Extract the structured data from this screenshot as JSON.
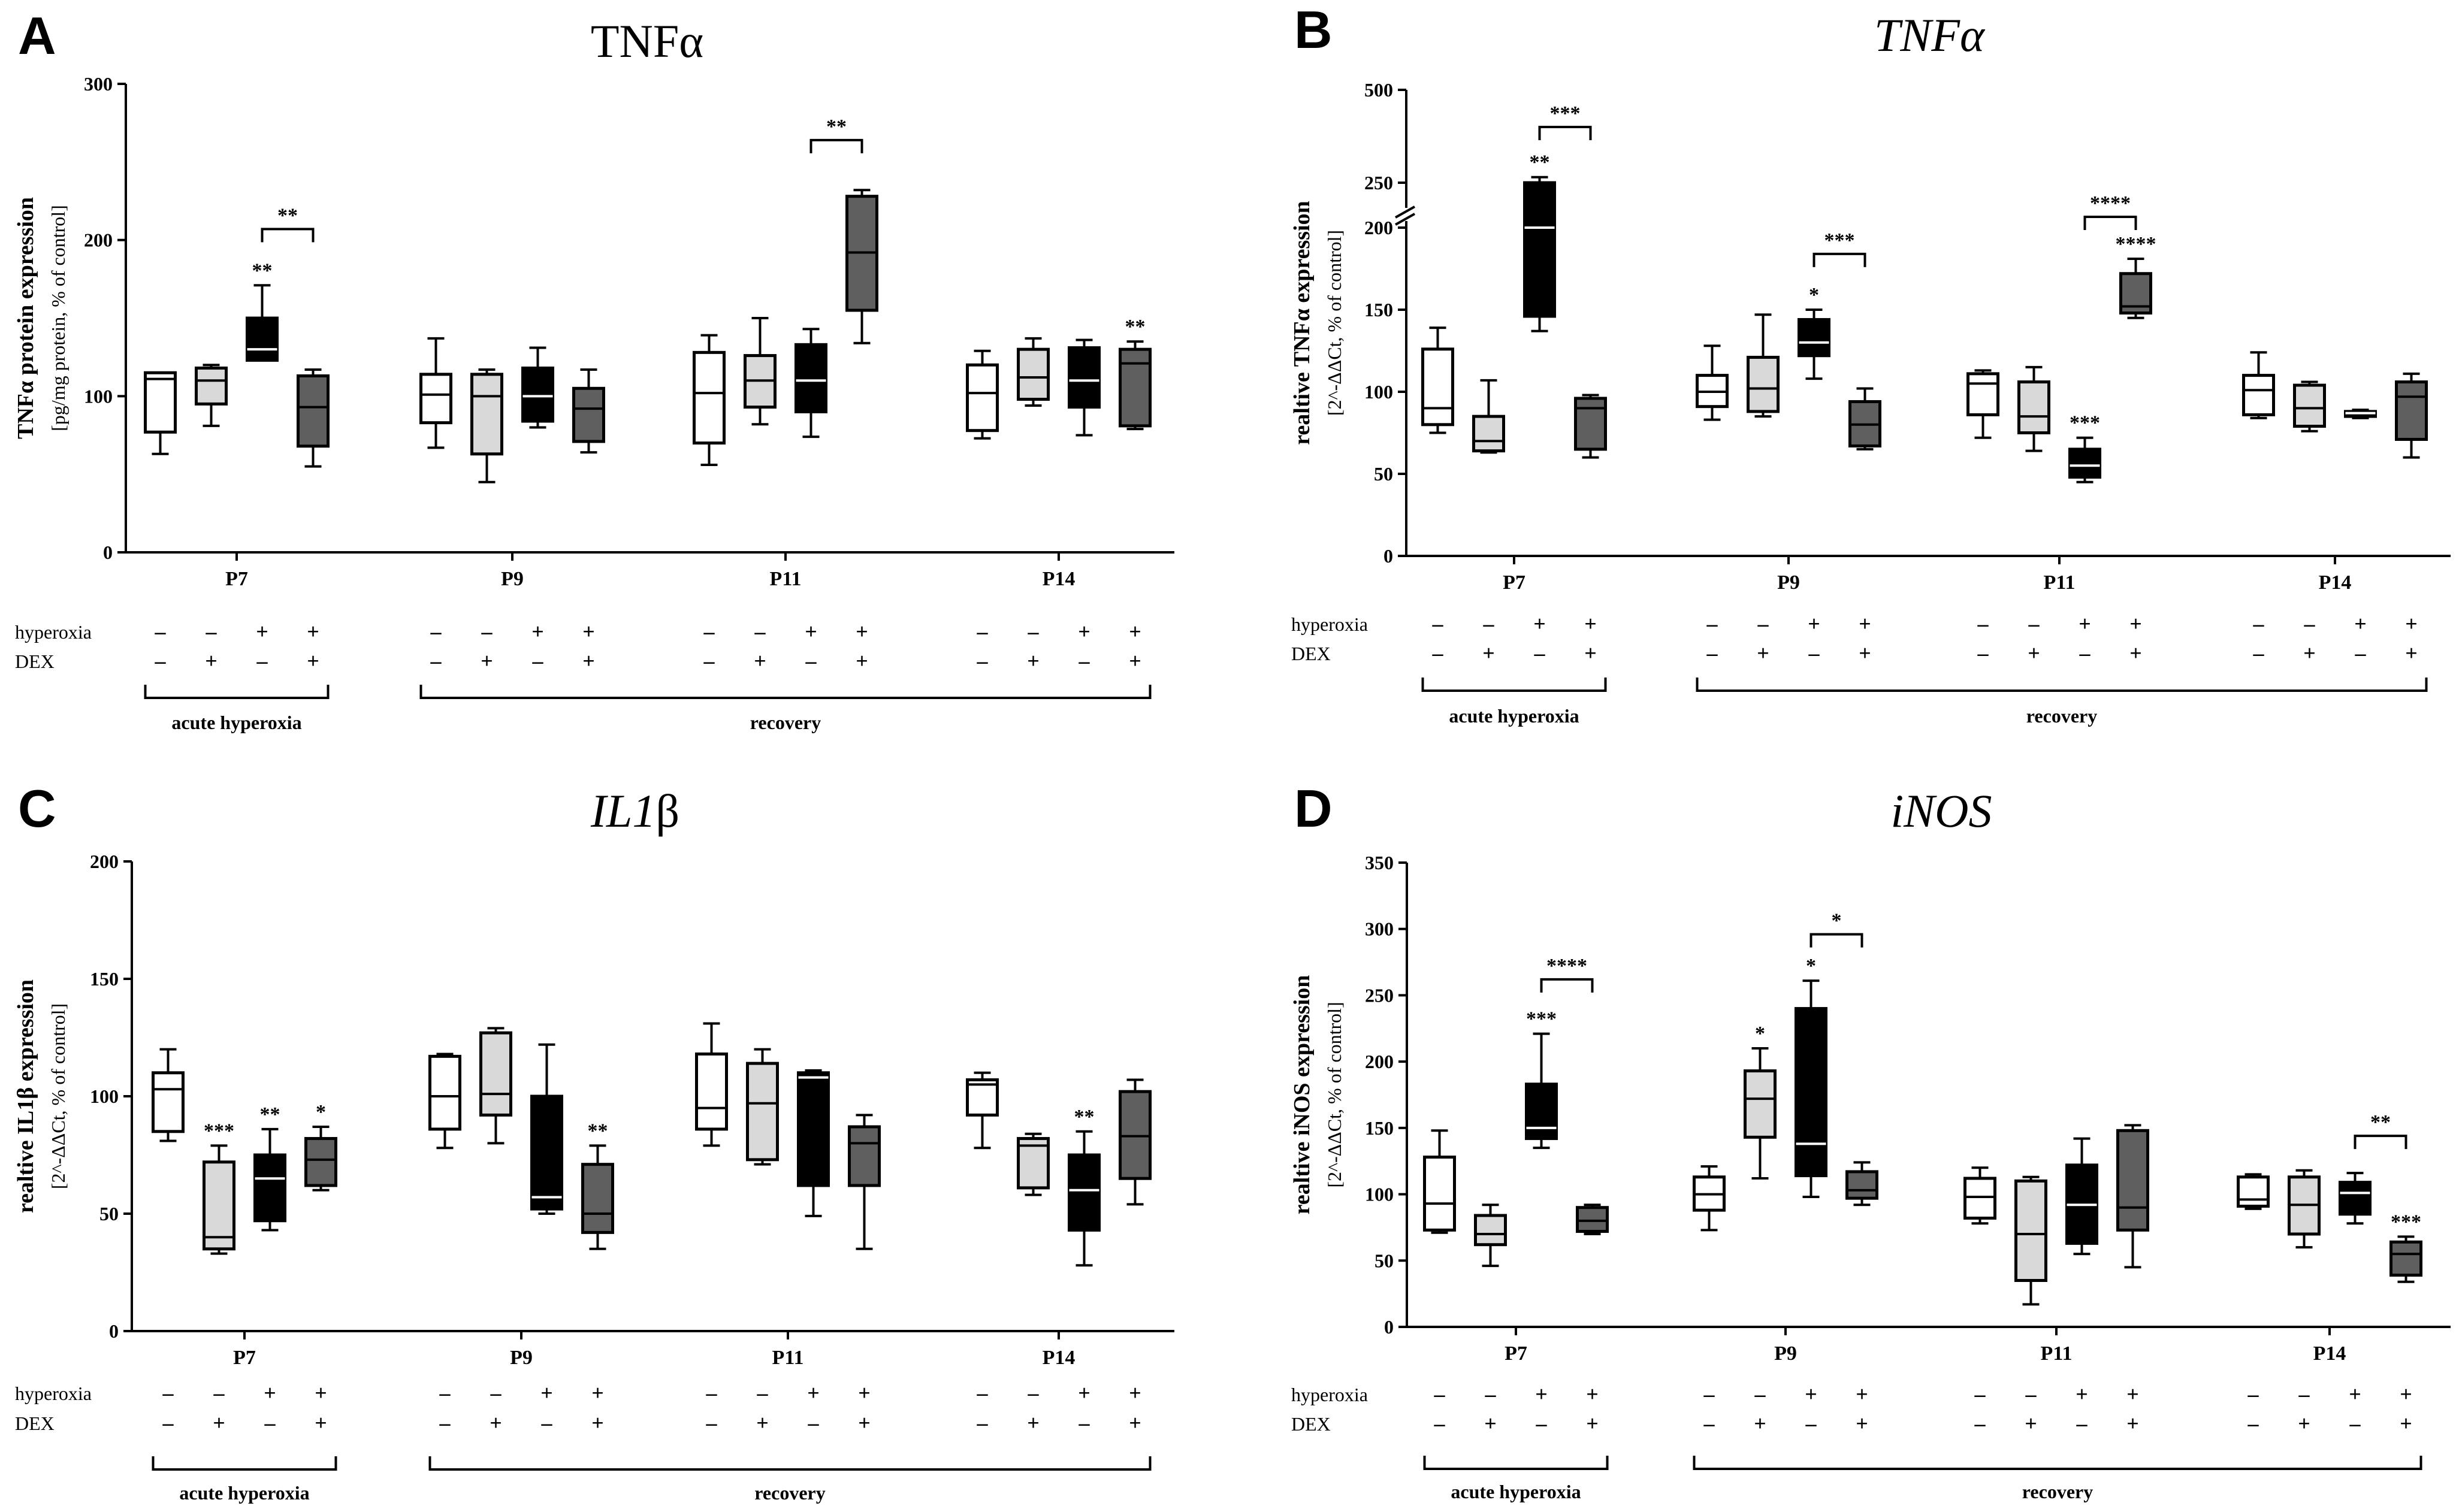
{
  "figure": {
    "group_labels": [
      "P7",
      "P9",
      "P11",
      "P14"
    ],
    "row_labels": {
      "hyperoxia": "hyperoxia",
      "dex": "DEX"
    },
    "signs": {
      "hyperoxia": [
        "–",
        "–",
        "+",
        "+"
      ],
      "dex": [
        "–",
        "+",
        "–",
        "+"
      ]
    },
    "bracket_labels": {
      "acute": "acute hyperoxia",
      "recovery": "recovery"
    },
    "colors": {
      "ctrl": "#ffffff",
      "dex": "#d9d9d9",
      "hyper": "#000000",
      "hyperdex": "#5f5f5f",
      "edge": "#000000"
    }
  },
  "chart_data": [
    {
      "type": "box",
      "panel": "A",
      "title": "TNFα",
      "title_italic": false,
      "ylabel": "TNFα protein expression",
      "ylabel_sub": "[pg/mg protein, % of control]",
      "ylim": [
        0,
        300
      ],
      "yticks": [
        0,
        100,
        200,
        300
      ],
      "categories": [
        "P7",
        "P9",
        "P11",
        "P14"
      ],
      "series": [
        {
          "values": [
            [
              63,
              77,
              111,
              115,
              115
            ],
            [
              81,
              95,
              110,
              118,
              120
            ],
            [
              123,
              123,
              130,
              150,
              171
            ],
            [
              55,
              68,
              93,
              113,
              117
            ]
          ]
        },
        {
          "values": [
            [
              67,
              83,
              101,
              114,
              137
            ],
            [
              45,
              63,
              100,
              114,
              117
            ],
            [
              80,
              84,
              100,
              118,
              131
            ],
            [
              64,
              71,
              92,
              105,
              117
            ]
          ]
        },
        {
          "values": [
            [
              56,
              70,
              102,
              128,
              139
            ],
            [
              82,
              93,
              110,
              126,
              150
            ],
            [
              74,
              90,
              110,
              133,
              143
            ],
            [
              134,
              155,
              192,
              228,
              232
            ]
          ]
        },
        {
          "values": [
            [
              73,
              78,
              102,
              120,
              129
            ],
            [
              94,
              98,
              112,
              130,
              137
            ],
            [
              75,
              93,
              110,
              131,
              136
            ],
            [
              79,
              81,
              121,
              130,
              135
            ]
          ]
        }
      ],
      "stars": [
        {
          "group": 0,
          "box": 2,
          "text": "**"
        },
        {
          "group": 3,
          "box": 3,
          "text": "**"
        }
      ],
      "brackets": [
        {
          "group": 0,
          "from": 2,
          "to": 3,
          "y": 207,
          "text": "**"
        },
        {
          "group": 2,
          "from": 2,
          "to": 3,
          "y": 264,
          "text": "**"
        }
      ]
    },
    {
      "type": "box",
      "panel": "B",
      "title": "TNFα",
      "title_italic": true,
      "ylabel": "realtive TNFα expression",
      "ylabel_sub": "[2^-ΔΔCt, % of control]",
      "broken_axis": true,
      "ylim": [
        0,
        500
      ],
      "yticks": [
        0,
        50,
        100,
        150,
        200,
        250,
        500
      ],
      "categories": [
        "P7",
        "P9",
        "P11",
        "P14"
      ],
      "series": [
        {
          "values": [
            [
              75,
              80,
              90,
              126,
              139
            ],
            [
              63,
              64,
              70,
              85,
              107
            ],
            [
              137,
              146,
              200,
              250,
              265
            ],
            [
              60,
              65,
              90,
              96,
              98
            ]
          ]
        },
        {
          "values": [
            [
              83,
              91,
              100,
              110,
              128
            ],
            [
              85,
              88,
              102,
              121,
              147
            ],
            [
              108,
              122,
              130,
              144,
              150
            ],
            [
              65,
              67,
              80,
              94,
              102
            ]
          ]
        },
        {
          "values": [
            [
              72,
              86,
              105,
              111,
              113
            ],
            [
              64,
              75,
              85,
              106,
              115
            ],
            [
              45,
              48,
              55,
              65,
              72
            ],
            [
              145,
              148,
              152,
              172,
              181
            ]
          ]
        },
        {
          "values": [
            [
              84,
              86,
              101,
              110,
              124
            ],
            [
              76,
              79,
              90,
              104,
              106
            ],
            [
              84,
              85,
              87,
              88,
              89
            ],
            [
              60,
              71,
              97,
              106,
              111
            ]
          ]
        }
      ],
      "stars": [
        {
          "group": 0,
          "box": 2,
          "text": "**"
        },
        {
          "group": 1,
          "box": 2,
          "text": "*"
        },
        {
          "group": 2,
          "box": 2,
          "text": "***"
        },
        {
          "group": 2,
          "box": 3,
          "text": "****"
        }
      ],
      "brackets": [
        {
          "group": 0,
          "from": 2,
          "to": 3,
          "y": 400,
          "text": "***"
        },
        {
          "group": 1,
          "from": 2,
          "to": 3,
          "y": 184,
          "text": "***"
        },
        {
          "group": 2,
          "from": 2,
          "to": 3,
          "y": 212,
          "text": "****"
        }
      ]
    },
    {
      "type": "box",
      "panel": "C",
      "title": "IL1β",
      "title_italic": true,
      "title_italic_part": "IL1",
      "title_plain_part": "β",
      "ylabel": "realtive IL1β expression",
      "ylabel_sub": "[2^-ΔΔCt, % of control]",
      "ylim": [
        0,
        200
      ],
      "yticks": [
        0,
        50,
        100,
        150,
        200
      ],
      "categories": [
        "P7",
        "P9",
        "P11",
        "P14"
      ],
      "series": [
        {
          "values": [
            [
              81,
              85,
              103,
              110,
              120
            ],
            [
              33,
              35,
              40,
              72,
              79
            ],
            [
              43,
              47,
              65,
              75,
              86
            ],
            [
              60,
              62,
              73,
              82,
              87
            ]
          ]
        },
        {
          "values": [
            [
              78,
              86,
              100,
              117,
              118
            ],
            [
              80,
              92,
              101,
              127,
              129
            ],
            [
              50,
              52,
              57,
              100,
              122
            ],
            [
              35,
              42,
              50,
              71,
              79
            ]
          ]
        },
        {
          "values": [
            [
              79,
              86,
              95,
              118,
              131
            ],
            [
              71,
              73,
              97,
              114,
              120
            ],
            [
              49,
              62,
              108,
              110,
              111
            ],
            [
              35,
              62,
              80,
              87,
              92
            ]
          ]
        },
        {
          "values": [
            [
              78,
              92,
              105,
              107,
              110
            ],
            [
              58,
              61,
              79,
              82,
              84
            ],
            [
              28,
              43,
              60,
              75,
              85
            ],
            [
              54,
              65,
              83,
              102,
              107
            ]
          ]
        }
      ],
      "stars": [
        {
          "group": 0,
          "box": 1,
          "text": "***"
        },
        {
          "group": 0,
          "box": 2,
          "text": "**"
        },
        {
          "group": 0,
          "box": 3,
          "text": "*"
        },
        {
          "group": 1,
          "box": 3,
          "text": "**"
        },
        {
          "group": 3,
          "box": 2,
          "text": "**"
        }
      ],
      "brackets": []
    },
    {
      "type": "box",
      "panel": "D",
      "title": "iNOS",
      "title_italic": true,
      "ylabel": "realtive iNOS expression",
      "ylabel_sub": "[2^-ΔΔCt, % of control]",
      "ylim": [
        0,
        350
      ],
      "yticks": [
        0,
        50,
        100,
        150,
        200,
        250,
        300,
        350
      ],
      "categories": [
        "P7",
        "P9",
        "P11",
        "P14"
      ],
      "series": [
        {
          "values": [
            [
              71,
              73,
              93,
              128,
              148
            ],
            [
              46,
              62,
              70,
              84,
              92
            ],
            [
              135,
              142,
              150,
              183,
              221
            ],
            [
              70,
              72,
              80,
              90,
              92
            ]
          ]
        },
        {
          "values": [
            [
              73,
              88,
              100,
              113,
              121
            ],
            [
              112,
              143,
              172,
              193,
              210
            ],
            [
              98,
              114,
              138,
              240,
              261
            ],
            [
              92,
              97,
              103,
              117,
              124
            ]
          ]
        },
        {
          "values": [
            [
              78,
              82,
              98,
              112,
              120
            ],
            [
              17,
              35,
              70,
              110,
              113
            ],
            [
              55,
              63,
              92,
              122,
              142
            ],
            [
              45,
              73,
              90,
              148,
              152
            ]
          ]
        },
        {
          "values": [
            [
              89,
              91,
              96,
              113,
              115
            ],
            [
              60,
              70,
              92,
              113,
              118
            ],
            [
              78,
              85,
              101,
              109,
              116
            ],
            [
              34,
              39,
              55,
              64,
              68
            ]
          ]
        }
      ],
      "stars": [
        {
          "group": 0,
          "box": 2,
          "text": "***"
        },
        {
          "group": 1,
          "box": 1,
          "text": "*"
        },
        {
          "group": 1,
          "box": 2,
          "text": "*"
        },
        {
          "group": 3,
          "box": 3,
          "text": "***"
        }
      ],
      "brackets": [
        {
          "group": 0,
          "from": 2,
          "to": 3,
          "y": 262,
          "text": "****"
        },
        {
          "group": 1,
          "from": 2,
          "to": 3,
          "y": 296,
          "text": "*"
        },
        {
          "group": 3,
          "from": 2,
          "to": 3,
          "y": 144,
          "text": "**"
        }
      ]
    }
  ]
}
